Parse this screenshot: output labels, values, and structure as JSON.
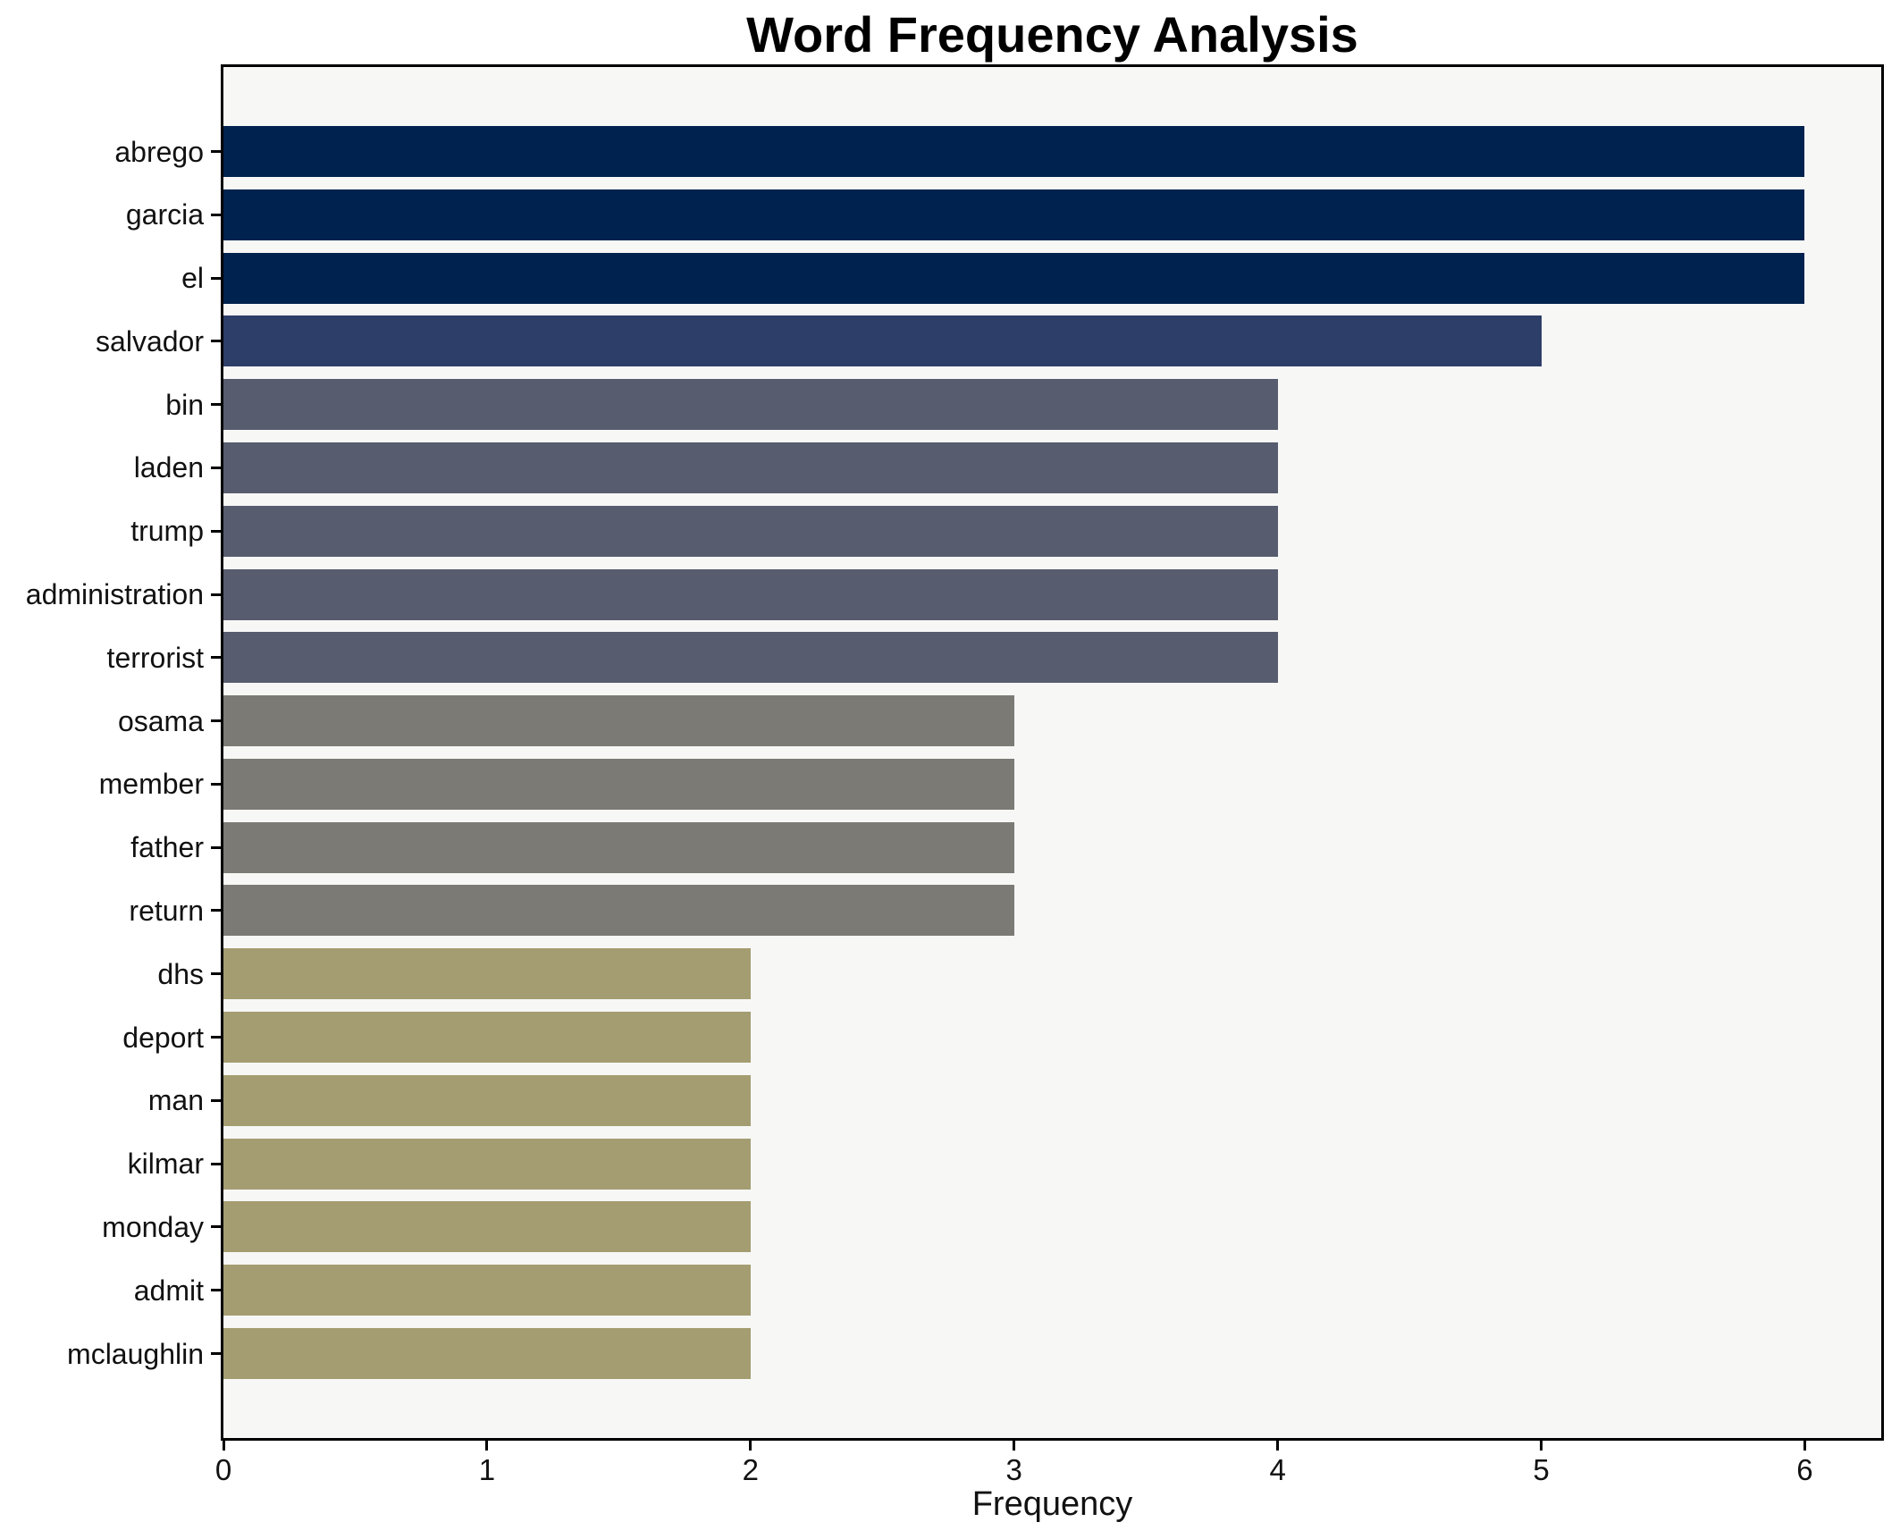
{
  "chart_data": {
    "type": "bar",
    "orientation": "horizontal",
    "title": "Word Frequency Analysis",
    "xlabel": "Frequency",
    "ylabel": "",
    "categories": [
      "abrego",
      "garcia",
      "el",
      "salvador",
      "bin",
      "laden",
      "trump",
      "administration",
      "terrorist",
      "osama",
      "member",
      "father",
      "return",
      "dhs",
      "deport",
      "man",
      "kilmar",
      "monday",
      "admit",
      "mclaughlin"
    ],
    "values": [
      6,
      6,
      6,
      5,
      4,
      4,
      4,
      4,
      4,
      3,
      3,
      3,
      3,
      2,
      2,
      2,
      2,
      2,
      2,
      2
    ],
    "x_ticks": [
      0,
      1,
      2,
      3,
      4,
      5,
      6
    ],
    "xlim": [
      0,
      6.29
    ],
    "grid": false,
    "legend_position": "none",
    "colors_by_value": {
      "6": "#00224e",
      "5": "#2d3e69",
      "4": "#575d6e",
      "3": "#7b7a74",
      "2": "#a49d71"
    },
    "plot_background": "#f7f7f6",
    "figure_background": "#ffffff",
    "spine_color": "#000000"
  }
}
